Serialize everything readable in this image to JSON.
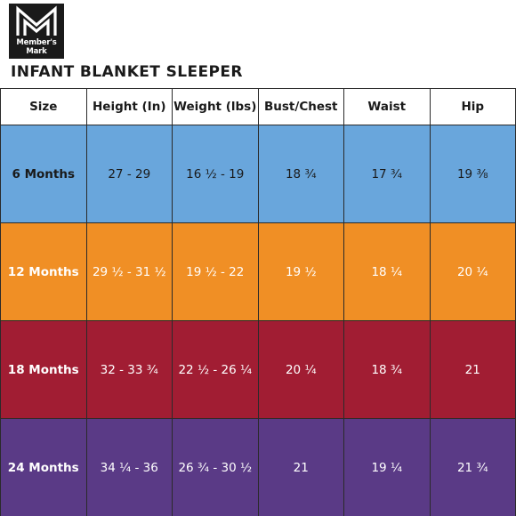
{
  "brand": {
    "logo_line1": "Member's",
    "logo_line2": "Mark"
  },
  "title": "INFANT BLANKET SLEEPER",
  "table": {
    "headers": [
      "Size",
      "Height (In)",
      "Weight (lbs)",
      "Bust/Chest",
      "Waist",
      "Hip"
    ],
    "rows": [
      {
        "color": "#69a6dc",
        "cells": [
          "6 Months",
          "27 - 29",
          "16 ½ - 19",
          "18 ¾",
          "17 ¾",
          "19 ⅜"
        ]
      },
      {
        "color": "#f08f25",
        "cells": [
          "12 Months",
          "29 ½ - 31 ½",
          "19 ½ - 22",
          "19 ½",
          "18 ¼",
          "20 ¼"
        ]
      },
      {
        "color": "#a11d33",
        "cells": [
          "18 Months",
          "32 - 33 ¾",
          "22 ½ - 26 ¼",
          "20 ¼",
          "18 ¾",
          "21"
        ]
      },
      {
        "color": "#5a3a86",
        "cells": [
          "24 Months",
          "34 ¼ - 36",
          "26 ¾ - 30 ½",
          "21",
          "19 ¼",
          "21 ¾"
        ]
      }
    ]
  }
}
